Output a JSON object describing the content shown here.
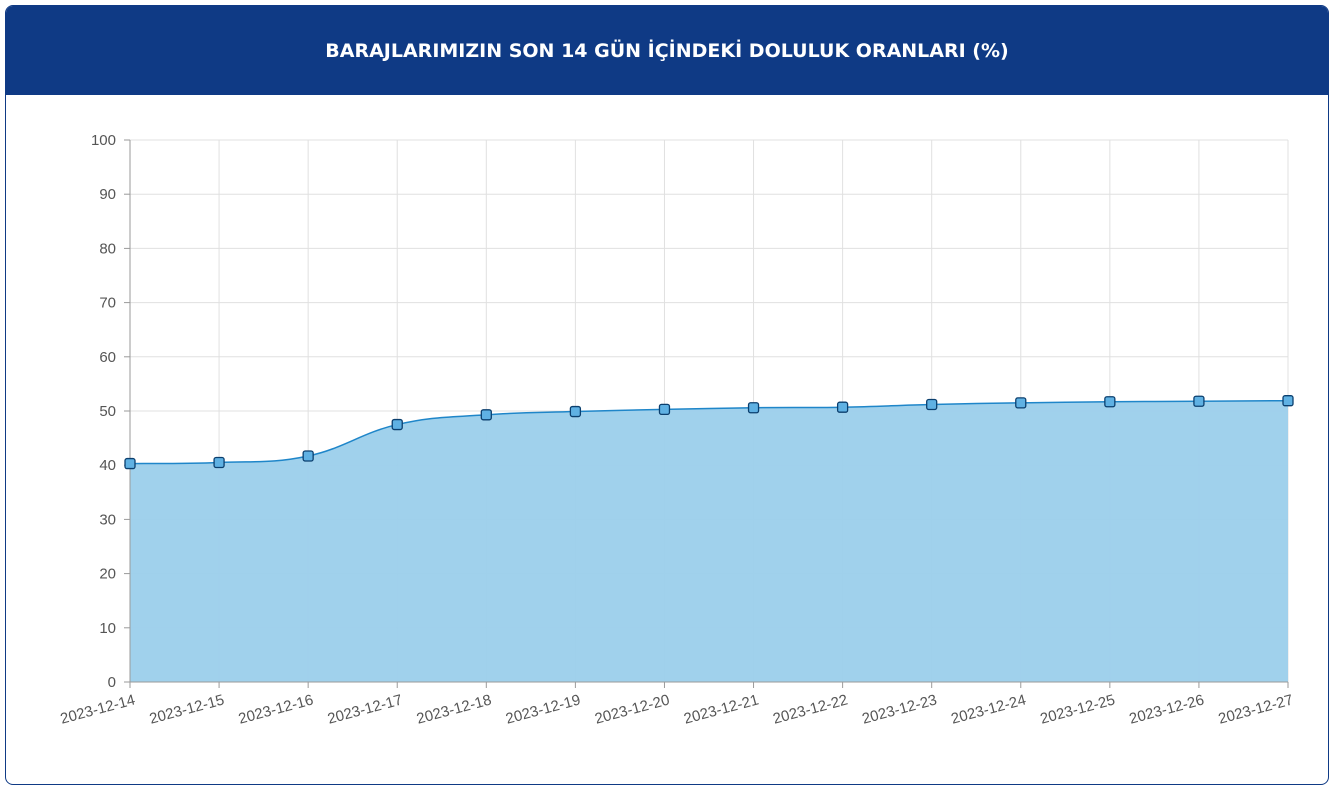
{
  "header": {
    "title": "BARAJLARIMIZIN SON 14 GÜN İÇİNDEKİ DOLULUK ORANLARI (%)"
  },
  "colors": {
    "header_bg": "#0f3a85",
    "line": "#1f86c9",
    "fill": "#9bcfeb",
    "point": "#1f86c9",
    "grid": "#e0e0e0",
    "tick_text": "#555555"
  },
  "chart_data": {
    "type": "area",
    "title": "BARAJLARIMIZIN SON 14 GÜN İÇİNDEKİ DOLULUK ORANLARI (%)",
    "xlabel": "",
    "ylabel": "",
    "ylim": [
      0,
      100
    ],
    "y_ticks": [
      "0",
      "10",
      "20",
      "30",
      "40",
      "50",
      "60",
      "70",
      "80",
      "90",
      "100"
    ],
    "grid": true,
    "legend": "none",
    "categories": [
      "2023-12-14",
      "2023-12-15",
      "2023-12-16",
      "2023-12-17",
      "2023-12-18",
      "2023-12-19",
      "2023-12-20",
      "2023-12-21",
      "2023-12-22",
      "2023-12-23",
      "2023-12-24",
      "2023-12-25",
      "2023-12-26",
      "2023-12-27"
    ],
    "series": [
      {
        "values": [
          40.3,
          40.5,
          41.7,
          47.5,
          49.3,
          49.9,
          50.3,
          50.6,
          50.7,
          51.2,
          51.5,
          51.7,
          51.8,
          51.9
        ]
      }
    ]
  }
}
